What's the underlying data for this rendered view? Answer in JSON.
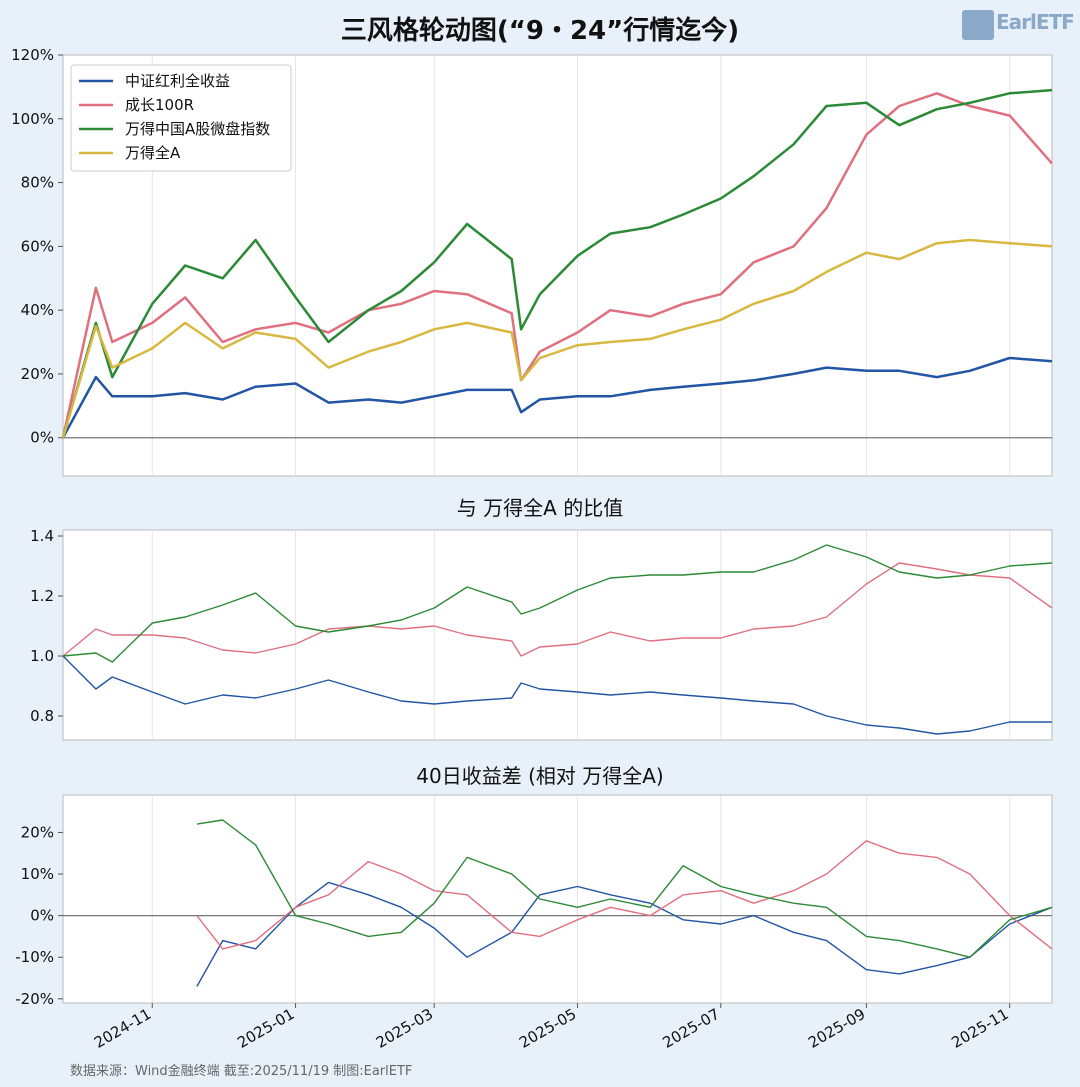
{
  "title": "三风格轮动图(“9・24”行情迄今)",
  "logo": {
    "text": "EarlETF"
  },
  "source": "数据来源：Wind金融终端 截至:2025/11/19 制图:EarlETF",
  "colors": {
    "dividend": "#2255a4",
    "growth": "#e07080",
    "micro": "#2b8a35",
    "wind_a": "#d8b840"
  },
  "x_ticks": [
    "2024-11",
    "2025-01",
    "2025-03",
    "2025-05",
    "2025-07",
    "2025-09",
    "2025-11"
  ],
  "chart_data": [
    {
      "type": "line",
      "title": "",
      "ylim": [
        -0.12,
        1.2
      ],
      "yticks": [
        "120%",
        "100%",
        "80%",
        "60%",
        "40%",
        "20%",
        "0%"
      ],
      "ytick_values": [
        1.2,
        1.0,
        0.8,
        0.6,
        0.4,
        0.2,
        0.0
      ],
      "legend": "top-left",
      "x": [
        "2024-09-24",
        "2024-10-08",
        "2024-10-15",
        "2024-11-01",
        "2024-11-15",
        "2024-12-01",
        "2024-12-15",
        "2025-01-01",
        "2025-01-15",
        "2025-02-01",
        "2025-02-15",
        "2025-03-01",
        "2025-03-15",
        "2025-04-03",
        "2025-04-07",
        "2025-04-15",
        "2025-05-01",
        "2025-05-15",
        "2025-06-01",
        "2025-06-15",
        "2025-07-01",
        "2025-07-15",
        "2025-08-01",
        "2025-08-15",
        "2025-09-01",
        "2025-09-15",
        "2025-10-01",
        "2025-10-15",
        "2025-11-01",
        "2025-11-19"
      ],
      "series": [
        {
          "name": "中证红利全收益",
          "values": [
            0.0,
            0.19,
            0.13,
            0.13,
            0.14,
            0.12,
            0.16,
            0.17,
            0.11,
            0.12,
            0.11,
            0.13,
            0.15,
            0.15,
            0.08,
            0.12,
            0.13,
            0.13,
            0.15,
            0.16,
            0.17,
            0.18,
            0.2,
            0.22,
            0.21,
            0.21,
            0.19,
            0.21,
            0.25,
            0.24
          ]
        },
        {
          "name": "成长100R",
          "values": [
            0.0,
            0.47,
            0.3,
            0.36,
            0.44,
            0.3,
            0.34,
            0.36,
            0.33,
            0.4,
            0.42,
            0.46,
            0.45,
            0.39,
            0.18,
            0.27,
            0.33,
            0.4,
            0.38,
            0.42,
            0.45,
            0.55,
            0.6,
            0.72,
            0.95,
            1.04,
            1.08,
            1.04,
            1.01,
            0.86
          ]
        },
        {
          "name": "万得中国A股微盘指数",
          "values": [
            0.0,
            0.36,
            0.19,
            0.42,
            0.54,
            0.5,
            0.62,
            0.44,
            0.3,
            0.4,
            0.46,
            0.55,
            0.67,
            0.56,
            0.34,
            0.45,
            0.57,
            0.64,
            0.66,
            0.7,
            0.75,
            0.82,
            0.92,
            1.04,
            1.05,
            0.98,
            1.03,
            1.05,
            1.08,
            1.09
          ]
        },
        {
          "name": "万得全A",
          "values": [
            0.0,
            0.35,
            0.22,
            0.28,
            0.36,
            0.28,
            0.33,
            0.31,
            0.22,
            0.27,
            0.3,
            0.34,
            0.36,
            0.33,
            0.18,
            0.25,
            0.29,
            0.3,
            0.31,
            0.34,
            0.37,
            0.42,
            0.46,
            0.52,
            0.58,
            0.56,
            0.61,
            0.62,
            0.61,
            0.6
          ]
        }
      ]
    },
    {
      "type": "line",
      "title": "与 万得全A 的比值",
      "ylim": [
        0.72,
        1.42
      ],
      "yticks": [
        "1.4",
        "1.2",
        "1.0",
        "0.8"
      ],
      "ytick_values": [
        1.4,
        1.2,
        1.0,
        0.8
      ],
      "x": [
        "2024-09-24",
        "2024-10-08",
        "2024-10-15",
        "2024-11-01",
        "2024-11-15",
        "2024-12-01",
        "2024-12-15",
        "2025-01-01",
        "2025-01-15",
        "2025-02-01",
        "2025-02-15",
        "2025-03-01",
        "2025-03-15",
        "2025-04-03",
        "2025-04-07",
        "2025-04-15",
        "2025-05-01",
        "2025-05-15",
        "2025-06-01",
        "2025-06-15",
        "2025-07-01",
        "2025-07-15",
        "2025-08-01",
        "2025-08-15",
        "2025-09-01",
        "2025-09-15",
        "2025-10-01",
        "2025-10-15",
        "2025-11-01",
        "2025-11-19"
      ],
      "series": [
        {
          "name": "中证红利全收益",
          "values": [
            1.0,
            0.89,
            0.93,
            0.88,
            0.84,
            0.87,
            0.86,
            0.89,
            0.92,
            0.88,
            0.85,
            0.84,
            0.85,
            0.86,
            0.91,
            0.89,
            0.88,
            0.87,
            0.88,
            0.87,
            0.86,
            0.85,
            0.84,
            0.8,
            0.77,
            0.76,
            0.74,
            0.75,
            0.78,
            0.78
          ]
        },
        {
          "name": "成长100R",
          "values": [
            1.0,
            1.09,
            1.07,
            1.07,
            1.06,
            1.02,
            1.01,
            1.04,
            1.09,
            1.1,
            1.09,
            1.1,
            1.07,
            1.05,
            1.0,
            1.03,
            1.04,
            1.08,
            1.05,
            1.06,
            1.06,
            1.09,
            1.1,
            1.13,
            1.24,
            1.31,
            1.29,
            1.27,
            1.26,
            1.16
          ]
        },
        {
          "name": "万得中国A股微盘指数",
          "values": [
            1.0,
            1.01,
            0.98,
            1.11,
            1.13,
            1.17,
            1.21,
            1.1,
            1.08,
            1.1,
            1.12,
            1.16,
            1.23,
            1.18,
            1.14,
            1.16,
            1.22,
            1.26,
            1.27,
            1.27,
            1.28,
            1.28,
            1.32,
            1.37,
            1.33,
            1.28,
            1.26,
            1.27,
            1.3,
            1.31
          ]
        }
      ]
    },
    {
      "type": "line",
      "title": "40日收益差 (相对 万得全A)",
      "ylim": [
        -0.21,
        0.29
      ],
      "yticks": [
        "20%",
        "10%",
        "0%",
        "-10%",
        "-20%"
      ],
      "ytick_values": [
        0.2,
        0.1,
        0.0,
        -0.1,
        -0.2
      ],
      "x": [
        "2024-11-20",
        "2024-12-01",
        "2024-12-15",
        "2025-01-01",
        "2025-01-15",
        "2025-02-01",
        "2025-02-15",
        "2025-03-01",
        "2025-03-15",
        "2025-04-03",
        "2025-04-15",
        "2025-05-01",
        "2025-05-15",
        "2025-06-01",
        "2025-06-15",
        "2025-07-01",
        "2025-07-15",
        "2025-08-01",
        "2025-08-15",
        "2025-09-01",
        "2025-09-15",
        "2025-10-01",
        "2025-10-15",
        "2025-11-01",
        "2025-11-19"
      ],
      "series": [
        {
          "name": "中证红利全收益",
          "values": [
            -0.17,
            -0.06,
            -0.08,
            0.02,
            0.08,
            0.05,
            0.02,
            -0.03,
            -0.1,
            -0.04,
            0.05,
            0.07,
            0.05,
            0.03,
            -0.01,
            -0.02,
            0.0,
            -0.04,
            -0.06,
            -0.13,
            -0.14,
            -0.12,
            -0.1,
            -0.02,
            0.02
          ]
        },
        {
          "name": "成长100R",
          "values": [
            0.0,
            -0.08,
            -0.06,
            0.02,
            0.05,
            0.13,
            0.1,
            0.06,
            0.05,
            -0.04,
            -0.05,
            -0.01,
            0.02,
            0.0,
            0.05,
            0.06,
            0.03,
            0.06,
            0.1,
            0.18,
            0.15,
            0.14,
            0.1,
            0.0,
            -0.08
          ]
        },
        {
          "name": "万得中国A股微盘指数",
          "values": [
            0.22,
            0.23,
            0.17,
            0.0,
            -0.02,
            -0.05,
            -0.04,
            0.03,
            0.14,
            0.1,
            0.04,
            0.02,
            0.04,
            0.02,
            0.12,
            0.07,
            0.05,
            0.03,
            0.02,
            -0.05,
            -0.06,
            -0.08,
            -0.1,
            -0.01,
            0.02
          ]
        }
      ]
    }
  ]
}
